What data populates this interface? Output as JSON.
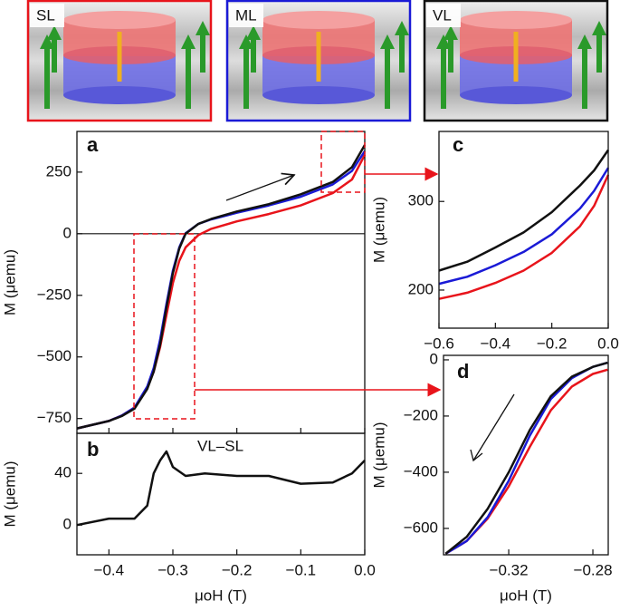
{
  "insets": [
    {
      "label": "SL",
      "color": "#e8141b"
    },
    {
      "label": "ML",
      "color": "#1a1ad6"
    },
    {
      "label": "VL",
      "color": "#111111"
    }
  ],
  "chart_data": [
    {
      "type": "line",
      "annotation": "a",
      "y_label": "M (μemu)",
      "xlim": [
        -0.45,
        0.0
      ],
      "ylim": [
        -810,
        415
      ],
      "yticks": [
        {
          "value": 250,
          "label": "250"
        },
        {
          "value": 0,
          "label": "0"
        },
        {
          "value": -250,
          "label": "−250"
        },
        {
          "value": -500,
          "label": "−500"
        },
        {
          "value": -750,
          "label": "−750"
        }
      ],
      "x": [
        -0.45,
        -0.4,
        -0.38,
        -0.36,
        -0.34,
        -0.33,
        -0.32,
        -0.31,
        -0.3,
        -0.29,
        -0.28,
        -0.26,
        -0.24,
        -0.2,
        -0.15,
        -0.1,
        -0.05,
        -0.02,
        0.0
      ],
      "series": [
        {
          "color": "#e8141b",
          "values": [
            -790,
            -760,
            -738,
            -706,
            -625,
            -560,
            -460,
            -330,
            -200,
            -110,
            -55,
            -5,
            20,
            50,
            80,
            115,
            165,
            220,
            320
          ]
        },
        {
          "color": "#1a1ad6",
          "values": [
            -790,
            -760,
            -738,
            -705,
            -620,
            -545,
            -430,
            -285,
            -150,
            -55,
            2,
            40,
            58,
            85,
            115,
            150,
            200,
            255,
            335
          ]
        },
        {
          "color": "#111111",
          "values": [
            -790,
            -760,
            -740,
            -710,
            -630,
            -560,
            -450,
            -300,
            -160,
            -60,
            0,
            40,
            60,
            90,
            120,
            160,
            210,
            270,
            360
          ]
        }
      ]
    },
    {
      "type": "line",
      "annotation": "b",
      "subtitle": "VL–SL",
      "y_label": "M (μemu)",
      "x_label": "μoH (T)",
      "xlim": [
        -0.45,
        0.0
      ],
      "ylim": [
        -23,
        71
      ],
      "xticks": [
        {
          "value": -0.4,
          "label": "−0.4"
        },
        {
          "value": -0.3,
          "label": "−0.3"
        },
        {
          "value": -0.2,
          "label": "−0.2"
        },
        {
          "value": -0.1,
          "label": "−0.1"
        },
        {
          "value": 0,
          "label": "0.0"
        }
      ],
      "yticks": [
        0,
        40
      ],
      "x": [
        -0.45,
        -0.4,
        -0.36,
        -0.34,
        -0.33,
        -0.32,
        -0.31,
        -0.3,
        -0.28,
        -0.25,
        -0.2,
        -0.15,
        -0.1,
        -0.05,
        -0.02,
        0.0
      ],
      "series": [
        {
          "color": "#111111",
          "values": [
            0,
            5,
            5,
            15,
            40,
            50,
            57,
            45,
            38,
            40,
            38,
            38,
            32,
            33,
            40,
            50
          ]
        }
      ]
    },
    {
      "type": "line",
      "annotation": "c",
      "y_label": "M (μemu)",
      "xlim": [
        -0.6,
        0.0
      ],
      "ylim": [
        157,
        379
      ],
      "xticks": [
        {
          "value": -0.6,
          "label": "−0.6"
        },
        {
          "value": -0.4,
          "label": "−0.4"
        },
        {
          "value": -0.2,
          "label": "−0.2"
        },
        {
          "value": 0,
          "label": "0.0"
        }
      ],
      "yticks": [
        200,
        300
      ],
      "x": [
        -0.6,
        -0.5,
        -0.4,
        -0.3,
        -0.2,
        -0.1,
        -0.05,
        0.0
      ],
      "series": [
        {
          "color": "#e8141b",
          "values": [
            190,
            197,
            208,
            222,
            242,
            272,
            295,
            330
          ]
        },
        {
          "color": "#1a1ad6",
          "values": [
            207,
            215,
            228,
            243,
            263,
            292,
            312,
            338
          ]
        },
        {
          "color": "#111111",
          "values": [
            222,
            232,
            248,
            265,
            288,
            318,
            335,
            358
          ]
        }
      ]
    },
    {
      "type": "line",
      "annotation": "d",
      "y_label": "M (μemu)",
      "x_label": "μoH (T)",
      "xlim": [
        -0.351,
        -0.2727
      ],
      "ylim": [
        -694,
        16
      ],
      "xticks": [
        {
          "value": -0.32,
          "label": "−0.32"
        },
        {
          "value": -0.28,
          "label": "−0.28"
        }
      ],
      "yticks": [
        {
          "value": 0,
          "label": "0"
        },
        {
          "value": -200,
          "label": "−200"
        },
        {
          "value": -400,
          "label": "−400"
        },
        {
          "value": -600,
          "label": "−600"
        }
      ],
      "x": [
        -0.35,
        -0.34,
        -0.33,
        -0.32,
        -0.31,
        -0.3,
        -0.29,
        -0.28,
        -0.273
      ],
      "series": [
        {
          "color": "#e8141b",
          "values": [
            -690,
            -645,
            -565,
            -450,
            -310,
            -180,
            -95,
            -50,
            -35
          ]
        },
        {
          "color": "#1a1ad6",
          "values": [
            -690,
            -645,
            -560,
            -430,
            -270,
            -140,
            -65,
            -25,
            -10
          ]
        },
        {
          "color": "#111111",
          "values": [
            -690,
            -630,
            -530,
            -400,
            -250,
            -130,
            -60,
            -25,
            -10
          ]
        }
      ]
    }
  ]
}
